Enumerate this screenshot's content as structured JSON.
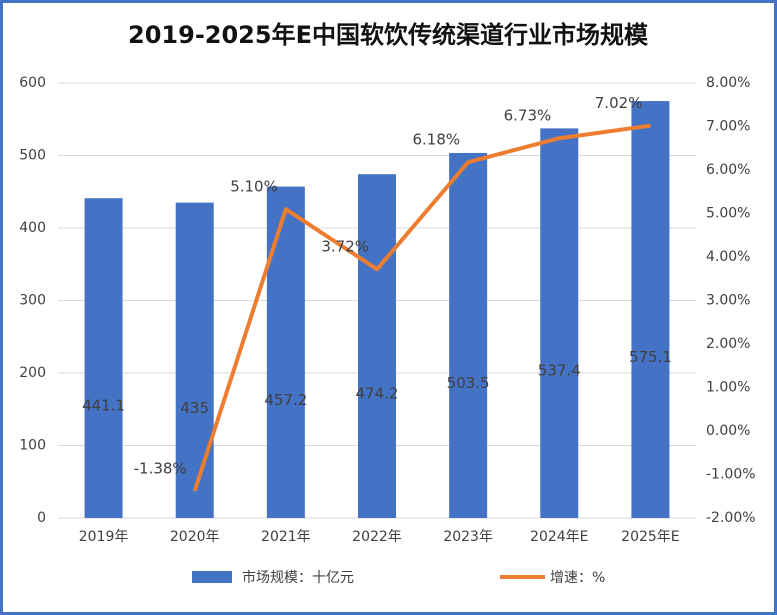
{
  "chart_data": {
    "type": "bar",
    "title": "2019-2025年E中国软饮传统渠道行业市场规模",
    "categories": [
      "2019年",
      "2020年",
      "2021年",
      "2022年",
      "2023年",
      "2024年E",
      "2025年E"
    ],
    "series": [
      {
        "name": "市场规模：十亿元",
        "color": "#4472c4",
        "type": "bar",
        "values": [
          441.1,
          435,
          457.2,
          474.2,
          503.5,
          537.4,
          575.1
        ]
      },
      {
        "name": "增速：%",
        "color": "#ed7d31",
        "type": "line",
        "axis": "y2",
        "values": [
          null,
          -1.38,
          5.1,
          3.72,
          6.18,
          6.73,
          7.02
        ],
        "value_labels": [
          null,
          "-1.38%",
          "5.10%",
          "3.72%",
          "6.18%",
          "6.73%",
          "7.02%"
        ]
      }
    ],
    "ylim": [
      0,
      600
    ],
    "yticks": [
      0,
      100,
      200,
      300,
      400,
      500,
      600
    ],
    "y2lim": [
      -2,
      8
    ],
    "y2ticks": [
      {
        "value": -2,
        "label": "-2.00%"
      },
      {
        "value": -1,
        "label": "-1.00%"
      },
      {
        "value": 0,
        "label": "0.00%"
      },
      {
        "value": 1,
        "label": "1.00%"
      },
      {
        "value": 2,
        "label": "2.00%"
      },
      {
        "value": 3,
        "label": "3.00%"
      },
      {
        "value": 4,
        "label": "4.00%"
      },
      {
        "value": 5,
        "label": "5.00%"
      },
      {
        "value": 6,
        "label": "6.00%"
      },
      {
        "value": 7,
        "label": "7.00%"
      },
      {
        "value": 8,
        "label": "8.00%"
      }
    ],
    "grid": true,
    "legend": "bottom"
  }
}
